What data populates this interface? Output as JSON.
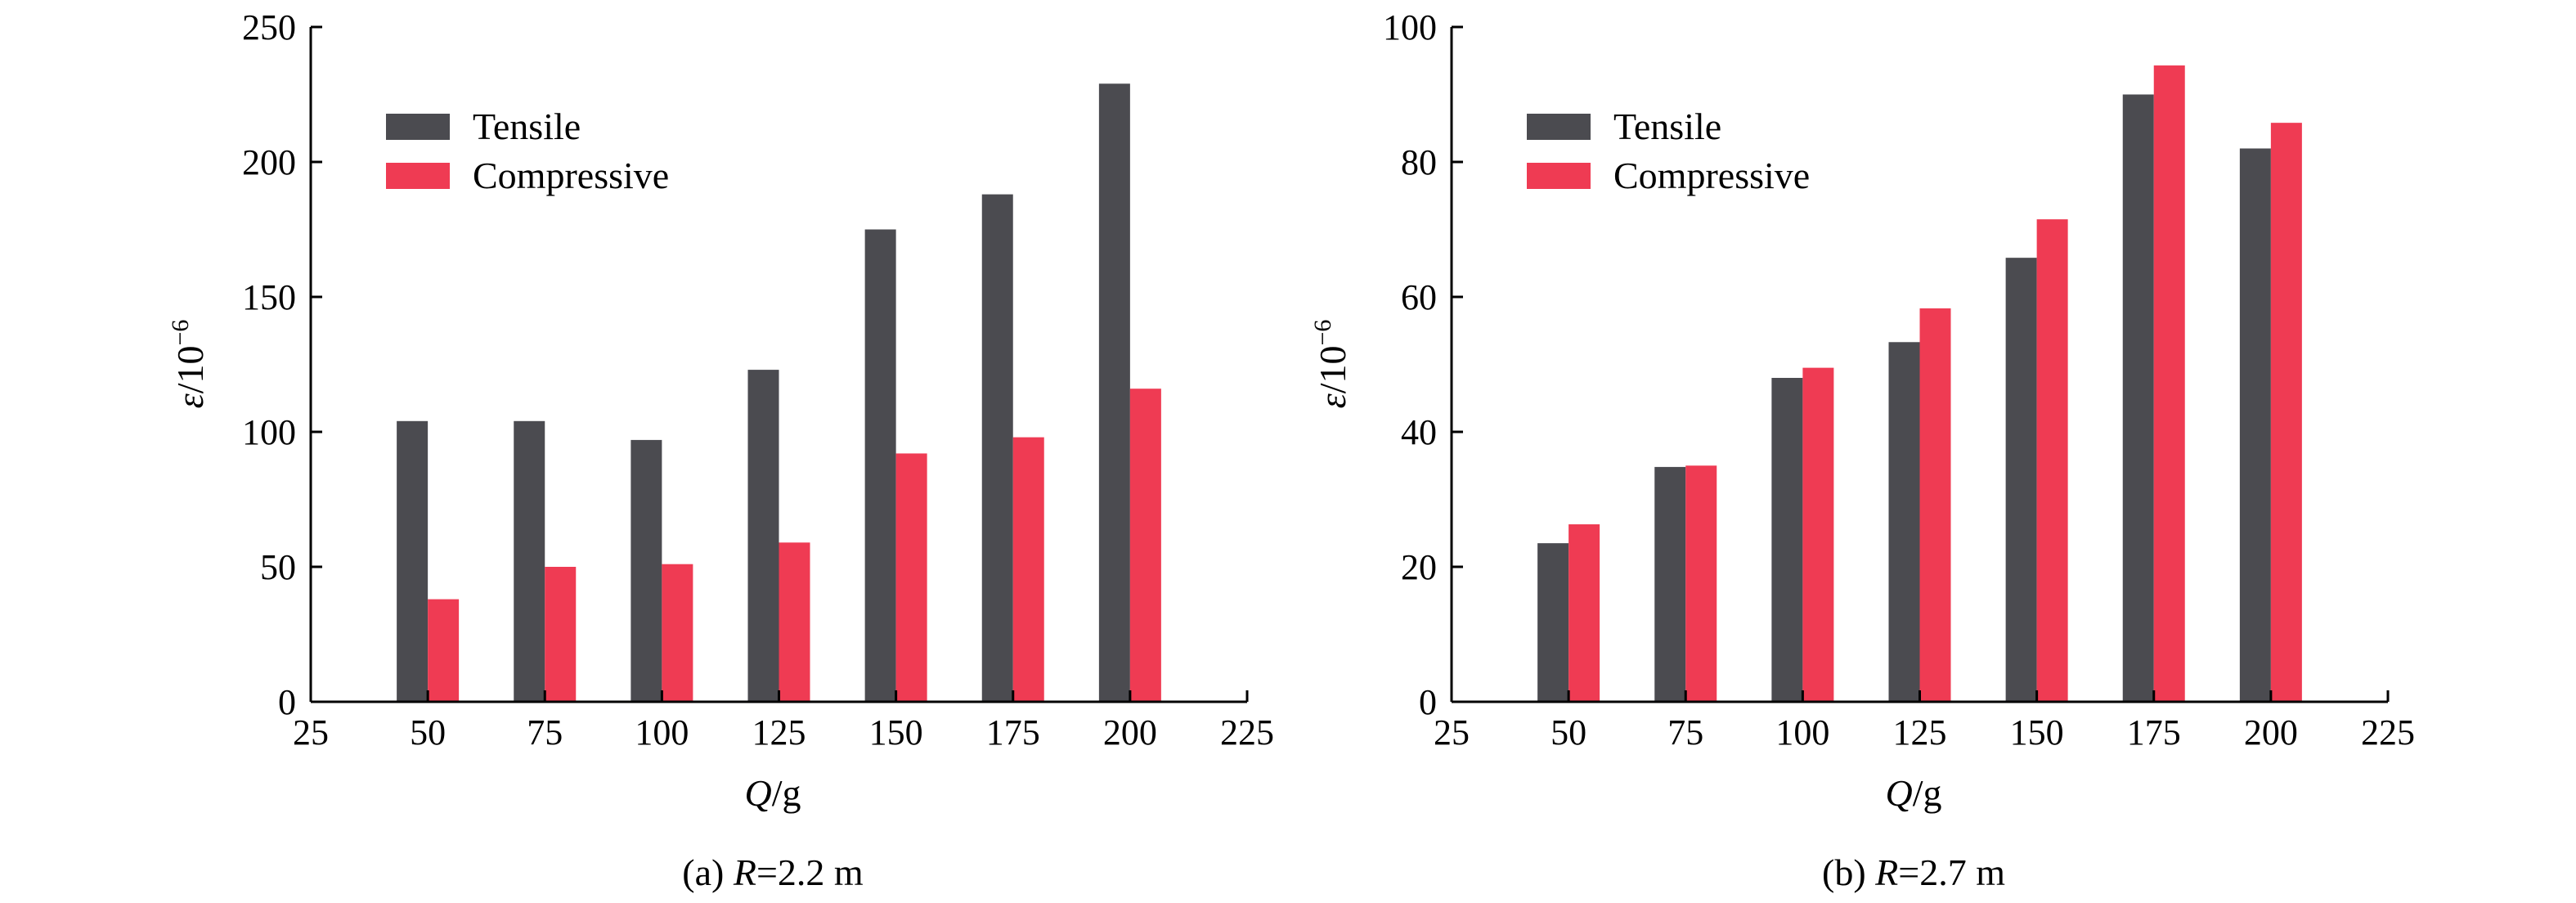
{
  "colors": {
    "tensile": "#4b4b50",
    "compressive": "#ef3b53"
  },
  "chart_data": [
    {
      "type": "bar",
      "caption_prefix": "(a) ",
      "caption_var": "R",
      "caption_value": "=2.2 m",
      "xlabel_var": "Q",
      "xlabel_unit": "/g",
      "ylabel_var": "ε",
      "ylabel_unit": "/10",
      "ylabel_exp": "−6",
      "xlim": [
        25,
        225
      ],
      "ylim": [
        0,
        250
      ],
      "xticks": [
        25,
        50,
        75,
        100,
        125,
        150,
        175,
        200,
        225
      ],
      "yticks": [
        0,
        50,
        100,
        150,
        200,
        250
      ],
      "categories": [
        50,
        75,
        100,
        125,
        150,
        175,
        200
      ],
      "legend_position": "top-left",
      "series": [
        {
          "name": "Tensile",
          "color_key": "tensile",
          "values": [
            104,
            104,
            97,
            123,
            175,
            188,
            229
          ]
        },
        {
          "name": "Compressive",
          "color_key": "compressive",
          "values": [
            38,
            50,
            51,
            59,
            92,
            98,
            116
          ]
        }
      ]
    },
    {
      "type": "bar",
      "caption_prefix": "(b) ",
      "caption_var": "R",
      "caption_value": "=2.7 m",
      "xlabel_var": "Q",
      "xlabel_unit": "/g",
      "ylabel_var": "ε",
      "ylabel_unit": "/10",
      "ylabel_exp": "−6",
      "xlim": [
        25,
        225
      ],
      "ylim": [
        0,
        100
      ],
      "xticks": [
        25,
        50,
        75,
        100,
        125,
        150,
        175,
        200,
        225
      ],
      "yticks": [
        0,
        20,
        40,
        60,
        80,
        100
      ],
      "categories": [
        50,
        75,
        100,
        125,
        150,
        175,
        200
      ],
      "legend_position": "top-left",
      "series": [
        {
          "name": "Tensile",
          "color_key": "tensile",
          "values": [
            23.5,
            34.8,
            48,
            53.3,
            65.8,
            90,
            82
          ]
        },
        {
          "name": "Compressive",
          "color_key": "compressive",
          "values": [
            26.3,
            35,
            49.5,
            58.3,
            71.5,
            94.3,
            85.8
          ]
        }
      ]
    }
  ]
}
